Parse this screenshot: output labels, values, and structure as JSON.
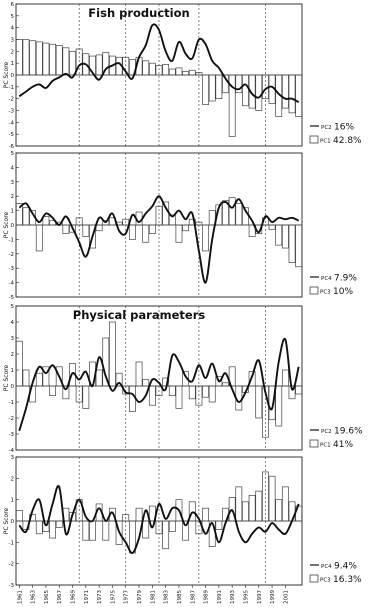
{
  "colors": {
    "line": "#111111",
    "bar_stroke": "#444444",
    "frame": "#222222"
  },
  "chart_data": [
    {
      "type": "bar",
      "panel_title": "Fish production",
      "ylabel": "PC Score",
      "ylim": [
        -6,
        6
      ],
      "yticks": [
        -6,
        -5,
        -4,
        -3,
        -2,
        -1,
        0,
        1,
        2,
        3,
        4,
        5,
        6
      ],
      "x_start": 1961,
      "x_end": 2003,
      "x_tick_labels": [
        "1961",
        "1963",
        "1965",
        "1967",
        "1969",
        "1971",
        "1973",
        "1975",
        "1977",
        "1979",
        "1981",
        "1983",
        "1985",
        "1987",
        "1989",
        "1991",
        "1993",
        "1995",
        "1997",
        "1999",
        "2001"
      ],
      "vlines": [
        1970,
        1977,
        1982,
        1988,
        1998
      ],
      "line_series": {
        "name": "PC2",
        "legend_label": "PC2",
        "legend_value": "16%",
        "values": [
          -1.8,
          -1.4,
          -1.0,
          -0.8,
          -1.1,
          -0.5,
          -0.2,
          0.1,
          -0.2,
          0.8,
          0.9,
          0.2,
          -0.4,
          0.5,
          0.8,
          1.0,
          0.3,
          -0.3,
          1.5,
          2.5,
          4.2,
          3.8,
          2.0,
          1.2,
          2.8,
          1.8,
          1.4,
          3.0,
          2.6,
          1.2,
          0.6,
          -0.3,
          -1.0,
          -1.2,
          -0.8,
          -1.6,
          -1.9,
          -1.2,
          -1.0,
          -1.6,
          -2.0,
          -2.0,
          -2.3
        ]
      },
      "bar_series": {
        "name": "PC1",
        "legend_label": "PC1",
        "legend_value": "42.8%",
        "values": [
          3.0,
          3.0,
          2.9,
          2.8,
          2.7,
          2.6,
          2.5,
          2.3,
          2.0,
          2.2,
          1.8,
          1.6,
          1.7,
          1.9,
          1.6,
          1.5,
          1.5,
          1.3,
          1.5,
          1.2,
          1.0,
          0.8,
          0.9,
          0.5,
          0.6,
          0.3,
          0.4,
          0.2,
          -2.5,
          -2.2,
          -2.0,
          -1.5,
          -5.2,
          -1.5,
          -2.6,
          -2.8,
          -3.0,
          -2.0,
          -2.4,
          -3.5,
          -2.8,
          -3.2,
          -3.5
        ]
      }
    },
    {
      "type": "bar",
      "panel_title": "",
      "ylabel": "PC Score",
      "ylim": [
        -5,
        5
      ],
      "yticks": [
        -5,
        -4,
        -3,
        -2,
        -1,
        0,
        1,
        2,
        3,
        4,
        5
      ],
      "x_start": 1961,
      "x_end": 2003,
      "vlines": [
        1970,
        1977,
        1982,
        1988,
        1998
      ],
      "line_series": {
        "name": "PC4",
        "legend_label": "PC4",
        "legend_value": "7.9%",
        "values": [
          1.2,
          1.5,
          0.8,
          0.2,
          0.8,
          0.5,
          0.0,
          0.6,
          -0.2,
          -1.2,
          -2.2,
          -0.8,
          0.5,
          0.2,
          0.8,
          -0.4,
          -0.6,
          0.7,
          0.2,
          0.8,
          1.3,
          2.0,
          1.2,
          0.6,
          1.0,
          0.4,
          0.8,
          -1.8,
          -4.0,
          -1.0,
          1.2,
          1.6,
          1.2,
          1.8,
          1.0,
          0.3,
          -0.5,
          0.6,
          0.2,
          0.5,
          0.4,
          0.5,
          0.3
        ]
      },
      "bar_series": {
        "name": "PC3",
        "legend_label": "PC3",
        "legend_value": "10%",
        "values": [
          1.5,
          1.2,
          1.0,
          -1.8,
          0.6,
          0.3,
          0.2,
          -0.6,
          -0.5,
          0.5,
          -0.8,
          -1.6,
          -0.4,
          0.3,
          0.5,
          0.2,
          0.4,
          -1.0,
          0.9,
          -1.2,
          -0.6,
          1.3,
          1.6,
          0.7,
          -1.2,
          -0.4,
          0.4,
          0.2,
          -1.8,
          1.0,
          1.4,
          1.7,
          1.9,
          1.5,
          1.2,
          -0.8,
          -0.6,
          0.5,
          -0.3,
          -1.4,
          -1.6,
          -2.6,
          -2.9
        ]
      }
    },
    {
      "type": "bar",
      "panel_title": "Physical parameters",
      "ylabel": "PC Score",
      "ylim": [
        -4,
        5
      ],
      "yticks": [
        -4,
        -3,
        -2,
        -1,
        0,
        1,
        2,
        3,
        4,
        5
      ],
      "x_start": 1961,
      "x_end": 2003,
      "vlines": [
        1970,
        1977,
        1982,
        1988,
        1998
      ],
      "line_series": {
        "name": "PC2",
        "legend_label": "PC2",
        "legend_value": "19.6%",
        "values": [
          -2.8,
          -1.4,
          0.2,
          1.2,
          0.8,
          1.3,
          0.6,
          -0.2,
          0.8,
          0.4,
          0.9,
          0.0,
          1.8,
          0.6,
          -0.3,
          0.2,
          -0.4,
          -0.5,
          -1.0,
          -0.6,
          0.4,
          0.2,
          -0.2,
          1.9,
          1.5,
          0.6,
          0.3,
          1.3,
          0.5,
          1.4,
          0.3,
          0.8,
          -0.2,
          -1.0,
          -0.4,
          0.6,
          1.6,
          -0.4,
          -1.4,
          1.5,
          2.9,
          -0.2,
          1.2
        ]
      },
      "bar_series": {
        "name": "PC1",
        "legend_label": "PC1",
        "legend_value": "41%",
        "values": [
          2.8,
          1.0,
          -1.0,
          0.8,
          1.2,
          -0.6,
          1.2,
          -0.8,
          1.4,
          -1.0,
          -1.4,
          1.5,
          1.0,
          3.0,
          4.0,
          0.8,
          -0.5,
          -1.6,
          1.5,
          0.4,
          -1.2,
          -0.6,
          0.5,
          -0.6,
          -1.4,
          0.9,
          -0.8,
          -1.2,
          -0.7,
          -1.0,
          0.6,
          0.2,
          1.2,
          -1.5,
          -0.4,
          0.9,
          -2.0,
          -3.2,
          -2.1,
          -2.5,
          1.0,
          -0.8,
          -0.5
        ]
      }
    },
    {
      "type": "bar",
      "panel_title": "",
      "ylabel": "PC Score",
      "ylim": [
        -3,
        3
      ],
      "yticks": [
        -3,
        -2,
        -1,
        0,
        1,
        2,
        3
      ],
      "x_start": 1961,
      "x_end": 2003,
      "vlines": [
        1970,
        1977,
        1982,
        1988,
        1998
      ],
      "line_series": {
        "name": "PC4",
        "legend_label": "PC4",
        "legend_value": "9.4%",
        "values": [
          -0.2,
          -0.5,
          0.5,
          1.0,
          -0.2,
          0.8,
          1.6,
          -0.6,
          0.3,
          1.0,
          0.2,
          0.0,
          0.6,
          0.0,
          0.4,
          -0.5,
          -1.0,
          -1.5,
          -0.8,
          0.5,
          -0.3,
          0.8,
          0.1,
          0.6,
          0.5,
          -0.2,
          0.4,
          0.1,
          -0.6,
          -0.1,
          -1.0,
          -0.1,
          0.5,
          -0.5,
          -1.0,
          -0.6,
          -0.3,
          -0.5,
          -0.1,
          -0.4,
          -0.6,
          0.0,
          0.8
        ]
      },
      "bar_series": {
        "name": "PC3",
        "legend_label": "PC3",
        "legend_value": "16.3%",
        "values": [
          0.5,
          -0.4,
          0.3,
          -0.6,
          -0.5,
          -0.8,
          -0.3,
          0.6,
          0.4,
          1.0,
          -0.9,
          -0.9,
          0.8,
          -0.9,
          0.6,
          -1.1,
          0.3,
          -1.5,
          0.6,
          -0.8,
          0.7,
          -0.6,
          -1.3,
          -0.5,
          1.0,
          -0.9,
          0.9,
          -0.6,
          0.6,
          -1.2,
          -0.4,
          0.6,
          1.1,
          1.6,
          0.9,
          1.2,
          1.4,
          2.3,
          2.1,
          1.0,
          1.6,
          0.9,
          0.7
        ]
      }
    }
  ]
}
